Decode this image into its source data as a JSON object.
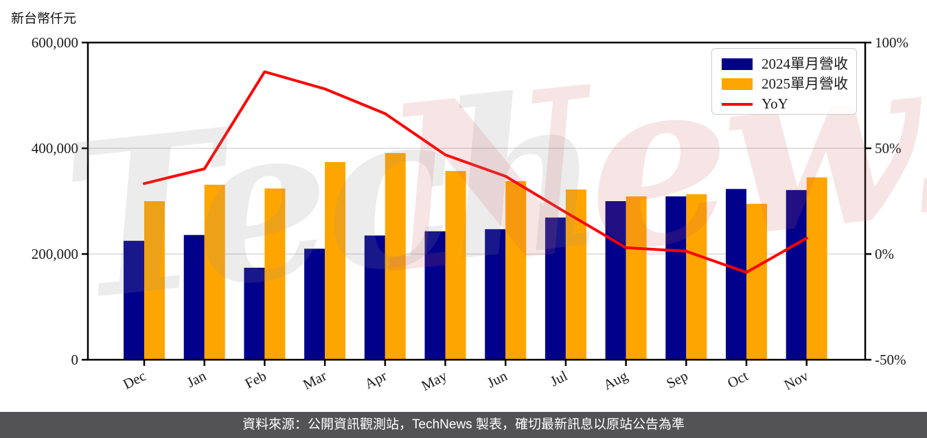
{
  "header": {
    "unit_label": "新台幣仟元"
  },
  "watermark": {
    "part1": "Tech",
    "part2": "News"
  },
  "footer": {
    "text": "資料來源：公開資訊觀測站，TechNews 製表，確切最新訊息以原站公告為準"
  },
  "colors": {
    "bar_2024": "#00008B",
    "bar_2025": "#FFA500",
    "yoy_line": "#FF0000",
    "grid": "#D8D8D8",
    "axis": "#000000",
    "text": "#1a1a1a",
    "footer_bg": "#535355",
    "legend_border": "#CBCBCB"
  },
  "chart_data": {
    "type": "bar",
    "subtype": "grouped bars with overlaid YoY line on secondary axis",
    "categories": [
      "Dec",
      "Jan",
      "Feb",
      "Mar",
      "Apr",
      "May",
      "Jun",
      "Jul",
      "Aug",
      "Sep",
      "Oct",
      "Nov"
    ],
    "series": [
      {
        "name": "2024單月營收",
        "type": "bar",
        "axis": "left",
        "color_key": "bar_2024",
        "values": [
          225000,
          236000,
          174000,
          210000,
          235000,
          243000,
          247000,
          269000,
          300000,
          309000,
          323000,
          321000
        ]
      },
      {
        "name": "2025單月營收",
        "type": "bar",
        "axis": "left",
        "color_key": "bar_2025",
        "values": [
          300000,
          331000,
          324000,
          374000,
          391000,
          357000,
          338000,
          322000,
          309000,
          313000,
          295000,
          345000
        ]
      },
      {
        "name": "YoY",
        "type": "line",
        "axis": "right",
        "color_key": "yoy_line",
        "unit": "%",
        "values": [
          33.3,
          40.3,
          86.2,
          78.1,
          66.4,
          46.9,
          36.8,
          19.7,
          3.0,
          1.3,
          -8.7,
          7.5
        ]
      }
    ],
    "left_axis": {
      "title": "新台幣仟元",
      "min": 0,
      "max": 600000,
      "tick_values": [
        600000,
        400000,
        200000,
        0
      ],
      "tick_labels": [
        "600,000",
        "400,000",
        "200,000",
        "0"
      ]
    },
    "right_axis": {
      "min": -50,
      "max": 100,
      "tick_values": [
        100,
        50,
        0,
        -50
      ],
      "tick_labels": [
        "100%",
        "50%",
        "0%",
        "-50%"
      ]
    },
    "legend": {
      "position": "top-right",
      "entries": [
        "2024單月營收",
        "2025單月營收",
        "YoY"
      ]
    },
    "grid": "horizontal gridlines at 200,000 and 400,000",
    "x_label_rotation_deg": -27
  }
}
